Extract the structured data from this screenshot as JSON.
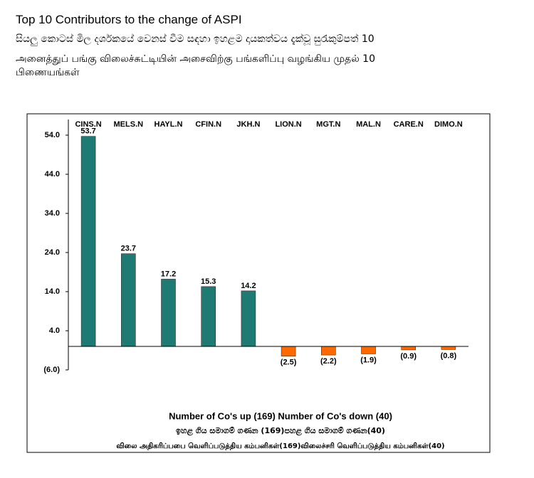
{
  "chart_data": {
    "type": "bar",
    "title": "Top 10 Contributors to the change of ASPI",
    "subtitle_lines": [
      "සියලු කොටස් මිල දර්ශකයේ වෙනස් වීම සඳහා ඉහළම දායකත්වය දැක්වූ සුරැකුම්පත් 10",
      "அனைத்துப் பங்கு விலைச்சுட்டியின் அசைவிற்கு பங்களிப்பு வழங்கிய முதல் 10",
      "பிணையங்கள்"
    ],
    "categories": [
      "CINS.N",
      "MELS.N",
      "HAYL.N",
      "CFIN.N",
      "JKH.N",
      "LION.N",
      "MGT.N",
      "MAL.N",
      "CARE.N",
      "DIMO.N"
    ],
    "values": [
      53.7,
      23.7,
      17.2,
      15.3,
      14.2,
      -2.5,
      -2.2,
      -1.9,
      -0.9,
      -0.8
    ],
    "value_labels": [
      "53.7",
      "23.7",
      "17.2",
      "15.3",
      "14.2",
      "(2.5)",
      "(2.2)",
      "(1.9)",
      "(0.9)",
      "(0.8)"
    ],
    "color": "#1d7b74",
    "negative_color": "#ff6a00",
    "ylim": [
      -6,
      58
    ],
    "yticks": [
      {
        "value": 54,
        "label": "54.0"
      },
      {
        "value": 44,
        "label": "44.0"
      },
      {
        "value": 34,
        "label": "34.0"
      },
      {
        "value": 24,
        "label": "24.0"
      },
      {
        "value": 14,
        "label": "14.0"
      },
      {
        "value": 4,
        "label": "4.0"
      },
      {
        "value": -6,
        "label": "(6.0)"
      }
    ],
    "footer_lines": [
      "Number of Co's up (169) Number of Co's down  (40)",
      "ඉහළ ගිය සමාගම් ගණන (169)පහළ ගිය සමාගම් ගණන(40)",
      "விலை அதிகரிப்பபை வெளிப்படுத்திய கம்பனிகள்(169)விலைச்சரி வெளிப்படுத்திய கம்பனிகள்(40)"
    ]
  }
}
